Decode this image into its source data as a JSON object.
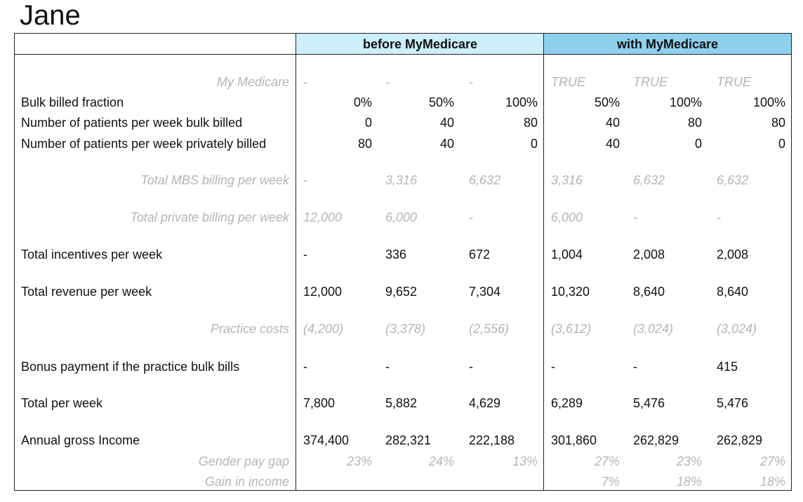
{
  "title": "Jane",
  "headers": {
    "before": "before MyMedicare",
    "with": "with MyMedicare"
  },
  "rows": [
    {
      "label": "My Medicare",
      "muted": true,
      "values": [
        "-",
        "-",
        "-",
        "TRUE",
        "TRUE",
        "TRUE"
      ]
    },
    {
      "label": "Bulk billed fraction",
      "muted": false,
      "values": [
        "0%",
        "50%",
        "100%",
        "50%",
        "100%",
        "100%"
      ]
    },
    {
      "label": "Number of patients per week bulk billed",
      "muted": false,
      "values": [
        "0",
        "40",
        "80",
        "40",
        "80",
        "80"
      ]
    },
    {
      "label": "Number of patients per week privately billed",
      "muted": false,
      "values": [
        "80",
        "40",
        "0",
        "40",
        "0",
        "0"
      ]
    },
    {
      "label": "Total MBS billing per week",
      "muted": true,
      "values": [
        "-",
        "3,316",
        "6,632",
        "3,316",
        "6,632",
        "6,632"
      ]
    },
    {
      "label": "Total private billing per week",
      "muted": true,
      "values": [
        "12,000",
        "6,000",
        "-",
        "6,000",
        "-",
        "-"
      ]
    },
    {
      "label": "Total incentives per week",
      "muted": false,
      "values": [
        "-",
        "336",
        "672",
        "1,004",
        "2,008",
        "2,008"
      ]
    },
    {
      "label": "Total revenue per week",
      "muted": false,
      "values": [
        "12,000",
        "9,652",
        "7,304",
        "10,320",
        "8,640",
        "8,640"
      ]
    },
    {
      "label": "Practice costs",
      "muted": true,
      "values": [
        "(4,200)",
        "(3,378)",
        "(2,556)",
        "(3,612)",
        "(3,024)",
        "(3,024)"
      ]
    },
    {
      "label": "Bonus payment if the practice bulk bills",
      "muted": false,
      "values": [
        "-",
        "-",
        "-",
        "-",
        "-",
        "415"
      ]
    },
    {
      "label": "Total per week",
      "muted": false,
      "values": [
        "7,800",
        "5,882",
        "4,629",
        "6,289",
        "5,476",
        "5,476"
      ]
    },
    {
      "label": "Annual gross Income",
      "muted": false,
      "values": [
        "374,400",
        "282,321",
        "222,188",
        "301,860",
        "262,829",
        "262,829"
      ]
    },
    {
      "label": "Gender pay gap",
      "muted": true,
      "values": [
        "23%",
        "24%",
        "13%",
        "27%",
        "23%",
        "27%"
      ]
    },
    {
      "label": "Gain in income",
      "muted": true,
      "values": [
        "",
        "",
        "",
        "7%",
        "18%",
        "18%"
      ]
    }
  ]
}
